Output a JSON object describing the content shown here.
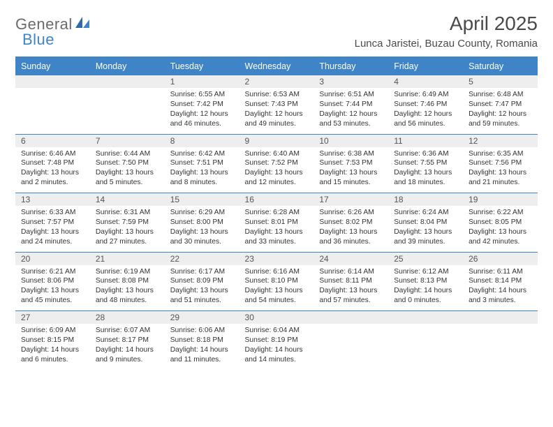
{
  "brand": {
    "text1": "General",
    "text2": "Blue"
  },
  "title": "April 2025",
  "location": "Lunca Jaristei, Buzau County, Romania",
  "colors": {
    "header_bg": "#3e84c6",
    "header_text": "#ffffff",
    "daynum_bg": "#eeeeee",
    "border": "#3e84c6",
    "body_text": "#333333",
    "logo_gray": "#6b6b6b",
    "logo_blue": "#3e84c6",
    "page_bg": "#ffffff"
  },
  "typography": {
    "title_fontsize": 28,
    "location_fontsize": 15,
    "header_fontsize": 12.5,
    "daynum_fontsize": 12,
    "cell_fontsize": 10.3
  },
  "weekdays": [
    "Sunday",
    "Monday",
    "Tuesday",
    "Wednesday",
    "Thursday",
    "Friday",
    "Saturday"
  ],
  "weeks": [
    [
      null,
      null,
      {
        "n": "1",
        "sr": "Sunrise: 6:55 AM",
        "ss": "Sunset: 7:42 PM",
        "dl": "Daylight: 12 hours and 46 minutes."
      },
      {
        "n": "2",
        "sr": "Sunrise: 6:53 AM",
        "ss": "Sunset: 7:43 PM",
        "dl": "Daylight: 12 hours and 49 minutes."
      },
      {
        "n": "3",
        "sr": "Sunrise: 6:51 AM",
        "ss": "Sunset: 7:44 PM",
        "dl": "Daylight: 12 hours and 53 minutes."
      },
      {
        "n": "4",
        "sr": "Sunrise: 6:49 AM",
        "ss": "Sunset: 7:46 PM",
        "dl": "Daylight: 12 hours and 56 minutes."
      },
      {
        "n": "5",
        "sr": "Sunrise: 6:48 AM",
        "ss": "Sunset: 7:47 PM",
        "dl": "Daylight: 12 hours and 59 minutes."
      }
    ],
    [
      {
        "n": "6",
        "sr": "Sunrise: 6:46 AM",
        "ss": "Sunset: 7:48 PM",
        "dl": "Daylight: 13 hours and 2 minutes."
      },
      {
        "n": "7",
        "sr": "Sunrise: 6:44 AM",
        "ss": "Sunset: 7:50 PM",
        "dl": "Daylight: 13 hours and 5 minutes."
      },
      {
        "n": "8",
        "sr": "Sunrise: 6:42 AM",
        "ss": "Sunset: 7:51 PM",
        "dl": "Daylight: 13 hours and 8 minutes."
      },
      {
        "n": "9",
        "sr": "Sunrise: 6:40 AM",
        "ss": "Sunset: 7:52 PM",
        "dl": "Daylight: 13 hours and 12 minutes."
      },
      {
        "n": "10",
        "sr": "Sunrise: 6:38 AM",
        "ss": "Sunset: 7:53 PM",
        "dl": "Daylight: 13 hours and 15 minutes."
      },
      {
        "n": "11",
        "sr": "Sunrise: 6:36 AM",
        "ss": "Sunset: 7:55 PM",
        "dl": "Daylight: 13 hours and 18 minutes."
      },
      {
        "n": "12",
        "sr": "Sunrise: 6:35 AM",
        "ss": "Sunset: 7:56 PM",
        "dl": "Daylight: 13 hours and 21 minutes."
      }
    ],
    [
      {
        "n": "13",
        "sr": "Sunrise: 6:33 AM",
        "ss": "Sunset: 7:57 PM",
        "dl": "Daylight: 13 hours and 24 minutes."
      },
      {
        "n": "14",
        "sr": "Sunrise: 6:31 AM",
        "ss": "Sunset: 7:59 PM",
        "dl": "Daylight: 13 hours and 27 minutes."
      },
      {
        "n": "15",
        "sr": "Sunrise: 6:29 AM",
        "ss": "Sunset: 8:00 PM",
        "dl": "Daylight: 13 hours and 30 minutes."
      },
      {
        "n": "16",
        "sr": "Sunrise: 6:28 AM",
        "ss": "Sunset: 8:01 PM",
        "dl": "Daylight: 13 hours and 33 minutes."
      },
      {
        "n": "17",
        "sr": "Sunrise: 6:26 AM",
        "ss": "Sunset: 8:02 PM",
        "dl": "Daylight: 13 hours and 36 minutes."
      },
      {
        "n": "18",
        "sr": "Sunrise: 6:24 AM",
        "ss": "Sunset: 8:04 PM",
        "dl": "Daylight: 13 hours and 39 minutes."
      },
      {
        "n": "19",
        "sr": "Sunrise: 6:22 AM",
        "ss": "Sunset: 8:05 PM",
        "dl": "Daylight: 13 hours and 42 minutes."
      }
    ],
    [
      {
        "n": "20",
        "sr": "Sunrise: 6:21 AM",
        "ss": "Sunset: 8:06 PM",
        "dl": "Daylight: 13 hours and 45 minutes."
      },
      {
        "n": "21",
        "sr": "Sunrise: 6:19 AM",
        "ss": "Sunset: 8:08 PM",
        "dl": "Daylight: 13 hours and 48 minutes."
      },
      {
        "n": "22",
        "sr": "Sunrise: 6:17 AM",
        "ss": "Sunset: 8:09 PM",
        "dl": "Daylight: 13 hours and 51 minutes."
      },
      {
        "n": "23",
        "sr": "Sunrise: 6:16 AM",
        "ss": "Sunset: 8:10 PM",
        "dl": "Daylight: 13 hours and 54 minutes."
      },
      {
        "n": "24",
        "sr": "Sunrise: 6:14 AM",
        "ss": "Sunset: 8:11 PM",
        "dl": "Daylight: 13 hours and 57 minutes."
      },
      {
        "n": "25",
        "sr": "Sunrise: 6:12 AM",
        "ss": "Sunset: 8:13 PM",
        "dl": "Daylight: 14 hours and 0 minutes."
      },
      {
        "n": "26",
        "sr": "Sunrise: 6:11 AM",
        "ss": "Sunset: 8:14 PM",
        "dl": "Daylight: 14 hours and 3 minutes."
      }
    ],
    [
      {
        "n": "27",
        "sr": "Sunrise: 6:09 AM",
        "ss": "Sunset: 8:15 PM",
        "dl": "Daylight: 14 hours and 6 minutes."
      },
      {
        "n": "28",
        "sr": "Sunrise: 6:07 AM",
        "ss": "Sunset: 8:17 PM",
        "dl": "Daylight: 14 hours and 9 minutes."
      },
      {
        "n": "29",
        "sr": "Sunrise: 6:06 AM",
        "ss": "Sunset: 8:18 PM",
        "dl": "Daylight: 14 hours and 11 minutes."
      },
      {
        "n": "30",
        "sr": "Sunrise: 6:04 AM",
        "ss": "Sunset: 8:19 PM",
        "dl": "Daylight: 14 hours and 14 minutes."
      },
      null,
      null,
      null
    ]
  ]
}
